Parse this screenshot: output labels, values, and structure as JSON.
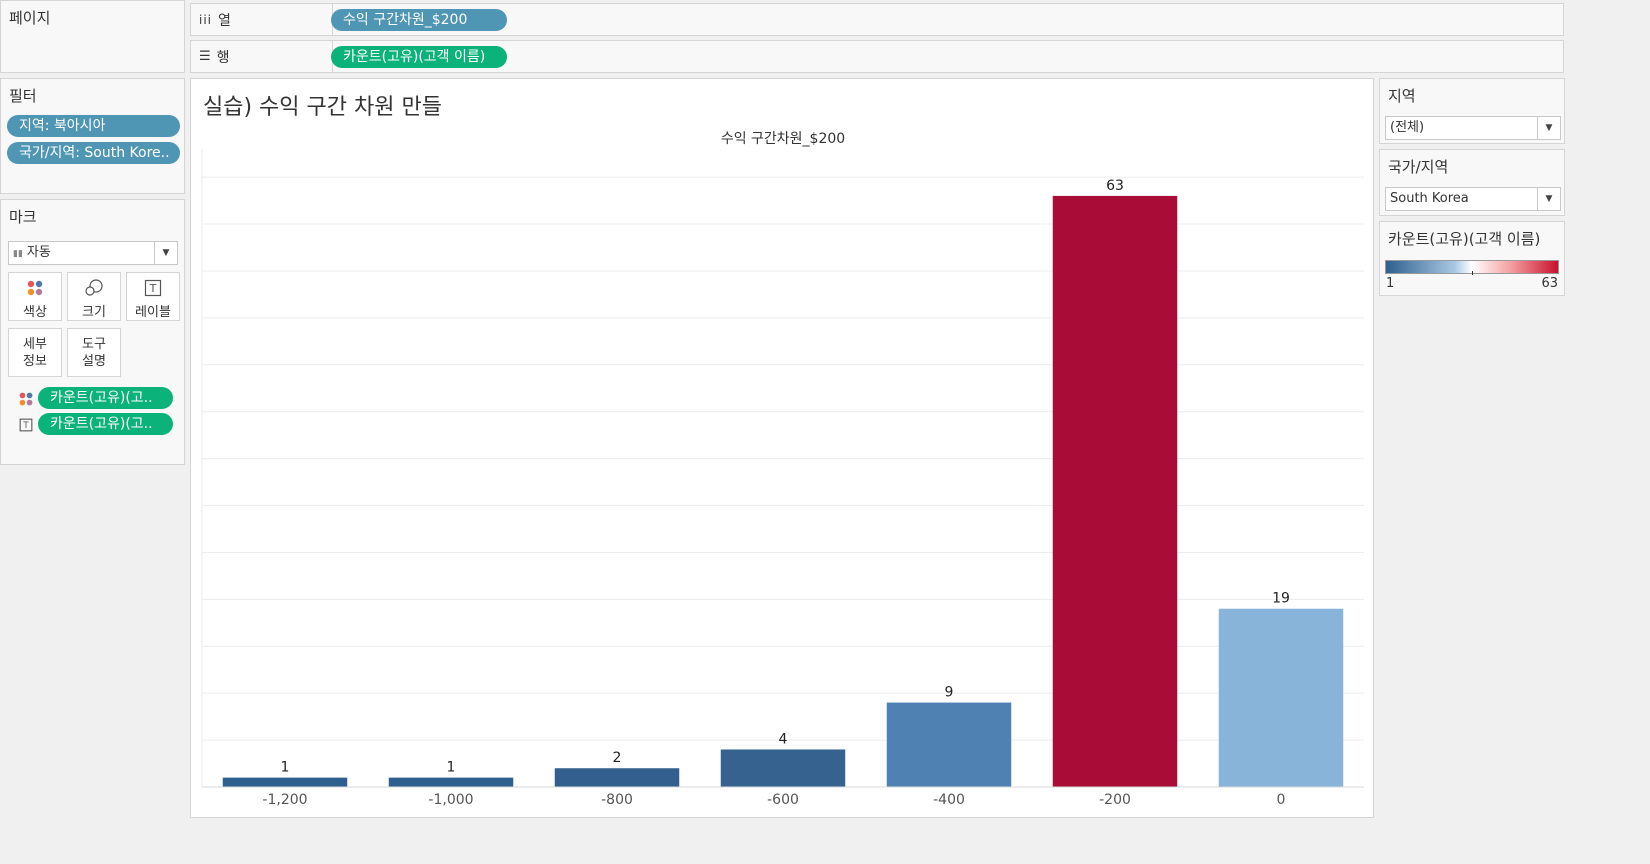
{
  "pages_card": {
    "title": "페이지"
  },
  "shelves": {
    "columns": {
      "label": "열",
      "icon": "columns-icon",
      "pill": "수익 구간차원_$200"
    },
    "rows": {
      "label": "행",
      "icon": "rows-icon",
      "pill": "카운트(고유)(고객 이름)"
    }
  },
  "filters": {
    "title": "필터",
    "items": [
      "지역: 북아시아",
      "국가/지역: South Kore.."
    ]
  },
  "marks": {
    "title": "마크",
    "type": "자동",
    "buttons": [
      {
        "label": "색상",
        "icon": "color-dots-icon"
      },
      {
        "label": "크기",
        "icon": "size-icon"
      },
      {
        "label": "레이블",
        "icon": "label-icon"
      },
      {
        "label": "세부\n정보",
        "line1": "세부",
        "line2": "정보"
      },
      {
        "label": "도구\n설명",
        "line1": "도구",
        "line2": "설명"
      }
    ],
    "fields": [
      {
        "icon": "color-dots-icon",
        "pill": "카운트(고유)(고.."
      },
      {
        "icon": "label-icon",
        "pill": "카운트(고유)(고.."
      }
    ]
  },
  "sheet": {
    "title": "실습) 수익 구간 차원 만들"
  },
  "right_panel": {
    "region": {
      "title": "지역",
      "value": "(전체)"
    },
    "country": {
      "title": "국가/지역",
      "value": "South Korea"
    },
    "legend": {
      "title": "카운트(고유)(고객 이름)",
      "min": "1",
      "max": "63",
      "colors": [
        "#2e5f8e",
        "#ffffff",
        "#c8102e"
      ]
    }
  },
  "chart_data": {
    "type": "bar",
    "title": "수익 구간차원_$200",
    "xlabel": "",
    "ylabel": "",
    "categories": [
      "-1,200",
      "-1,000",
      "-800",
      "-600",
      "-400",
      "-200",
      "0"
    ],
    "values": [
      1,
      1,
      2,
      4,
      9,
      63,
      19
    ],
    "colors": [
      "#2e5f8e",
      "#2e5f8e",
      "#325f8d",
      "#35628f",
      "#5081b3",
      "#a80c37",
      "#87b4d8"
    ],
    "ylim": [
      0,
      68
    ],
    "grid": true,
    "data_labels": true
  }
}
